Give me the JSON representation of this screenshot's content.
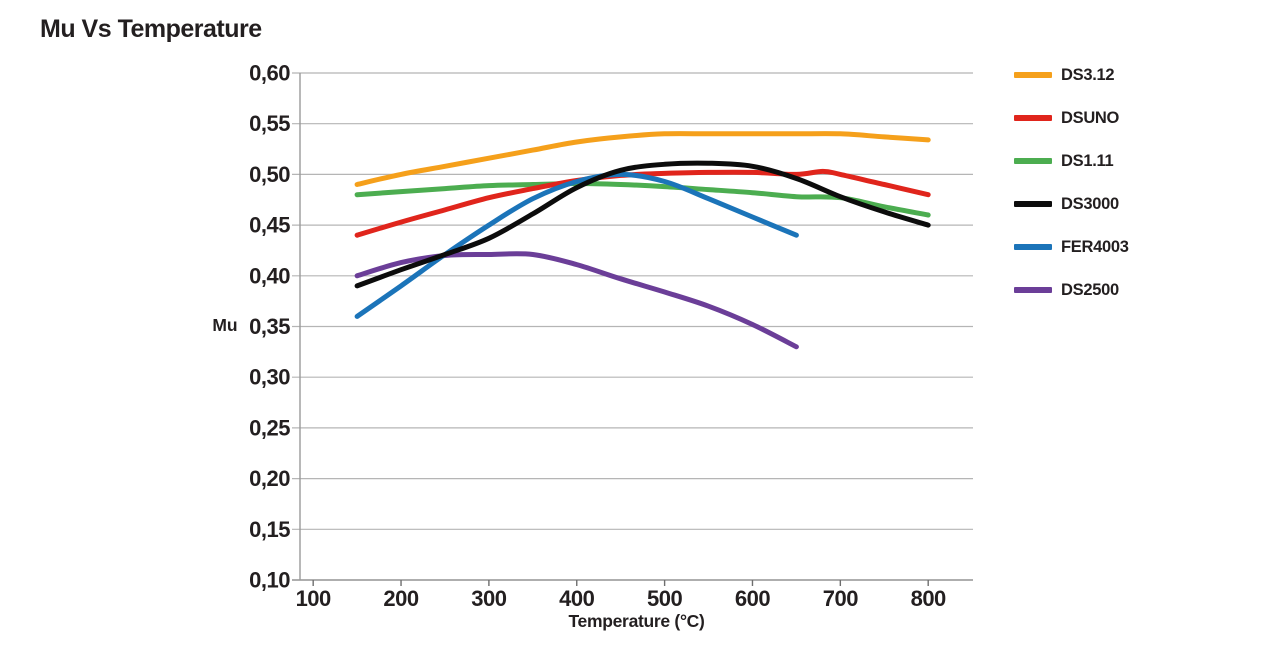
{
  "page": {
    "background": "#ffffff",
    "text_color": "#231F20"
  },
  "chart_data": {
    "type": "line",
    "title": "Mu Vs Temperature",
    "xlabel": "Temperature (°C)",
    "ylabel": "Mu",
    "x_range": [
      85,
      851
    ],
    "y_range": [
      0.1,
      0.6
    ],
    "grid": "horizontal",
    "legend_position": "right",
    "decimal_separator": ",",
    "line_width": 5,
    "grid_color": "#b5b5b5",
    "axis_color": "#9a9a9a",
    "x_ticks": [
      {
        "value": 100,
        "label": "100"
      },
      {
        "value": 200,
        "label": "200"
      },
      {
        "value": 300,
        "label": "300"
      },
      {
        "value": 400,
        "label": "400"
      },
      {
        "value": 500,
        "label": "500"
      },
      {
        "value": 600,
        "label": "600"
      },
      {
        "value": 700,
        "label": "700"
      },
      {
        "value": 800,
        "label": "800"
      }
    ],
    "y_ticks": [
      {
        "value": 0.6,
        "label": "0,60"
      },
      {
        "value": 0.55,
        "label": "0,55"
      },
      {
        "value": 0.5,
        "label": "0,50"
      },
      {
        "value": 0.45,
        "label": "0,45"
      },
      {
        "value": 0.4,
        "label": "0,40"
      },
      {
        "value": 0.35,
        "label": "0,35"
      },
      {
        "value": 0.3,
        "label": "0,30"
      },
      {
        "value": 0.25,
        "label": "0,25"
      },
      {
        "value": 0.2,
        "label": "0,20"
      },
      {
        "value": 0.15,
        "label": "0,15"
      },
      {
        "value": 0.1,
        "label": "0,10"
      }
    ],
    "series": [
      {
        "name": "DS3.12",
        "color": "#F5A01B",
        "x": [
          150,
          200,
          250,
          300,
          350,
          400,
          450,
          500,
          550,
          600,
          650,
          700,
          750,
          800
        ],
        "y": [
          0.49,
          0.5,
          0.508,
          0.516,
          0.524,
          0.532,
          0.537,
          0.54,
          0.54,
          0.54,
          0.54,
          0.54,
          0.537,
          0.534
        ]
      },
      {
        "name": "DSUNO",
        "color": "#E0251C",
        "x": [
          150,
          200,
          250,
          300,
          350,
          400,
          450,
          500,
          550,
          600,
          650,
          680,
          700,
          750,
          800
        ],
        "y": [
          0.44,
          0.453,
          0.465,
          0.477,
          0.486,
          0.494,
          0.499,
          0.501,
          0.502,
          0.502,
          0.5,
          0.503,
          0.5,
          0.49,
          0.48
        ]
      },
      {
        "name": "DS1.11",
        "color": "#4CAD50",
        "x": [
          150,
          200,
          250,
          300,
          350,
          400,
          450,
          500,
          550,
          600,
          650,
          700,
          750,
          800
        ],
        "y": [
          0.48,
          0.483,
          0.486,
          0.489,
          0.49,
          0.491,
          0.49,
          0.488,
          0.485,
          0.482,
          0.478,
          0.477,
          0.468,
          0.46
        ]
      },
      {
        "name": "DS3000",
        "color": "#0C0C0C",
        "x": [
          150,
          200,
          250,
          300,
          350,
          400,
          450,
          500,
          550,
          600,
          650,
          700,
          750,
          800
        ],
        "y": [
          0.39,
          0.406,
          0.421,
          0.437,
          0.461,
          0.487,
          0.504,
          0.51,
          0.511,
          0.508,
          0.496,
          0.478,
          0.463,
          0.45
        ]
      },
      {
        "name": "FER4003",
        "color": "#1B74B9",
        "x": [
          150,
          200,
          250,
          300,
          350,
          400,
          450,
          500,
          550,
          600,
          650
        ],
        "y": [
          0.36,
          0.39,
          0.421,
          0.45,
          0.476,
          0.493,
          0.5,
          0.493,
          0.476,
          0.458,
          0.44
        ]
      },
      {
        "name": "DS2500",
        "color": "#6B3E98",
        "x": [
          150,
          200,
          250,
          300,
          350,
          400,
          450,
          500,
          550,
          600,
          650
        ],
        "y": [
          0.4,
          0.413,
          0.42,
          0.421,
          0.421,
          0.411,
          0.397,
          0.384,
          0.37,
          0.352,
          0.33
        ]
      }
    ],
    "draw_order": [
      "DS2500",
      "DS1.11",
      "DSUNO",
      "FER4003",
      "DS3000",
      "DS3.12"
    ]
  }
}
